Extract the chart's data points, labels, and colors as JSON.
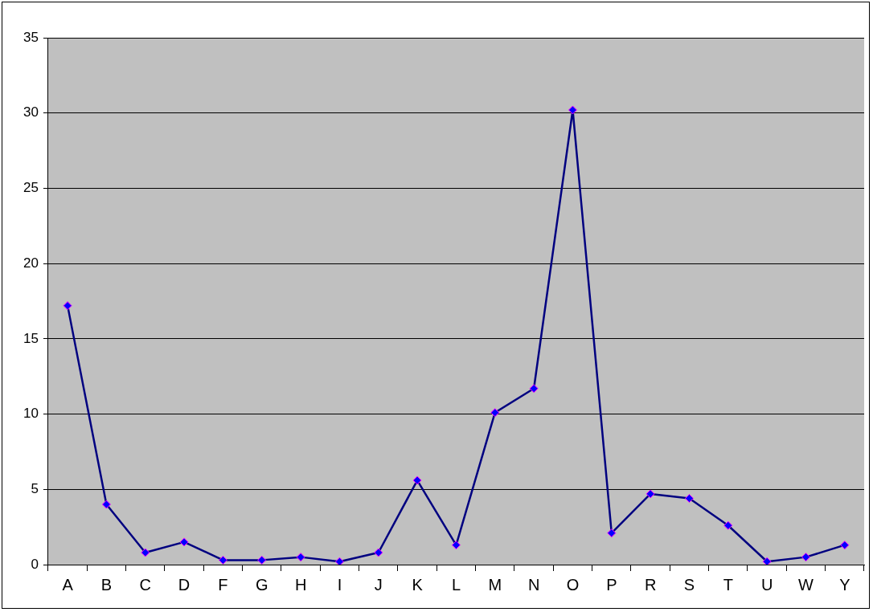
{
  "chart_data": {
    "type": "line",
    "categories": [
      "A",
      "B",
      "C",
      "D",
      "F",
      "G",
      "H",
      "I",
      "J",
      "K",
      "L",
      "M",
      "N",
      "O",
      "P",
      "R",
      "S",
      "T",
      "U",
      "W",
      "Y"
    ],
    "series": [
      {
        "color": "#000080",
        "values": [
          17.2,
          4.0,
          0.8,
          1.5,
          0.3,
          0.3,
          0.5,
          0.2,
          0.8,
          5.6,
          1.3,
          10.1,
          11.7,
          30.2,
          2.1,
          4.7,
          4.4,
          2.6,
          0.2,
          0.5,
          1.3
        ]
      }
    ],
    "ylim": [
      0,
      35
    ],
    "yticks": [
      0,
      5,
      10,
      15,
      20,
      25,
      30,
      35
    ],
    "grid": "y",
    "legend": false,
    "marker": "diamond",
    "line_style": "solid"
  }
}
